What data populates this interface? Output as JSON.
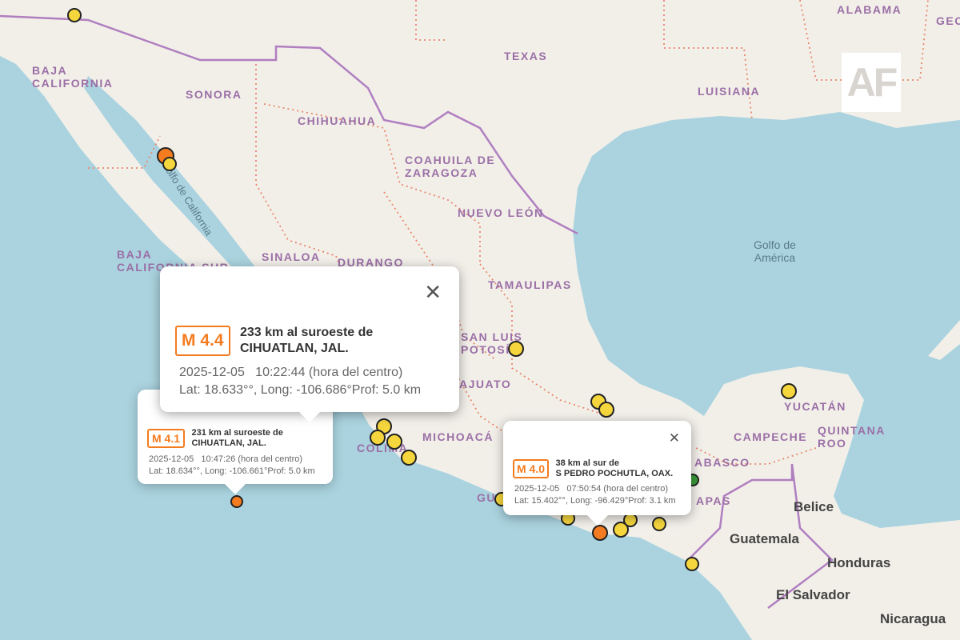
{
  "colors": {
    "ocean": "#aad3df",
    "land": "#f2efe9",
    "country_border": "#b07fc0",
    "state_border": "#e8876a",
    "magnitude_accent": "#f47c20",
    "marker_yellow": "#f5d63d",
    "marker_orange": "#f47c20",
    "marker_green": "#3a9a3a"
  },
  "logo": {
    "text": "AF"
  },
  "labels": {
    "alabama": "ALABAMA",
    "geo": "GEO",
    "texas": "TEXAS",
    "luisiana": "LUISIANA",
    "baja_california": "BAJA\nCALIFORNIA",
    "sonora": "SONORA",
    "chihuahua": "CHIHUAHUA",
    "coahuila": "COAHUILA DE\nZARAGOZA",
    "nuevo_leon": "NUEVO LEÓN",
    "golfo": "Golfo de\nAmérica",
    "baja_california_sur": "BAJA\nCALIFORNIA SUR",
    "sinaloa": "SINALOA",
    "durango": "DURANGO",
    "tamaulipas": "TAMAULIPAS",
    "san_luis": "SAN LUIS\nPOTOSÍ",
    "guanajuato": "AJUATO",
    "michoacan": "MICHOACÁ",
    "colima": "COLIMA",
    "yucatan": "YUCATÁN",
    "campeche": "CAMPECHE",
    "quintana_roo": "QUINTANA\nROO",
    "tabasco": "ABASCO",
    "chiapas": "APAS",
    "guerrero": "GUE",
    "belice": "Belice",
    "guatemala": "Guatemala",
    "honduras": "Honduras",
    "el_salvador": "El Salvador",
    "nicaragua": "Nicaragua",
    "golfo_california": "Golfo de California"
  },
  "markers": [
    {
      "color": "yellow"
    },
    {
      "color": "orange"
    },
    {
      "color": "yellow"
    },
    {
      "color": "orange"
    },
    {
      "color": "orange"
    },
    {
      "color": "yellow"
    },
    {
      "color": "yellow"
    },
    {
      "color": "yellow"
    },
    {
      "color": "yellow"
    },
    {
      "color": "yellow"
    },
    {
      "color": "yellow"
    },
    {
      "color": "yellow"
    },
    {
      "color": "yellow"
    },
    {
      "color": "yellow"
    },
    {
      "color": "yellow"
    },
    {
      "color": "yellow"
    },
    {
      "color": "orange"
    },
    {
      "color": "yellow"
    },
    {
      "color": "yellow"
    },
    {
      "color": "yellow"
    },
    {
      "color": "green"
    }
  ],
  "popups": [
    {
      "magnitude": "M 4.4",
      "place_line1": "233 km al suroeste de",
      "place_line2": "CIHUATLAN, JAL.",
      "datetime": "2025-12-05   10:22:44 (hora del centro)",
      "coords": "Lat: 18.633°°, Long: -106.686°Prof: 5.0 km",
      "close": "✕"
    },
    {
      "magnitude": "M 4.1",
      "place_line1": "231 km al suroeste de",
      "place_line2": "CIHUATLAN, JAL.",
      "datetime": "2025-12-05   10:47:26 (hora del centro)",
      "coords": "Lat: 18.634°°, Long: -106.661°Prof: 5.0 km"
    },
    {
      "magnitude": "M 4.0",
      "place_line1": "38 km al sur de",
      "place_line2": "S PEDRO POCHUTLA, OAX.",
      "datetime": "2025-12-05   07:50:54 (hora del centro)",
      "coords": "Lat: 15.402°°, Long: -96.429°Prof: 3.1 km",
      "close": "✕"
    }
  ]
}
